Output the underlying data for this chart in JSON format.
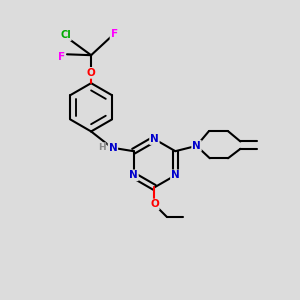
{
  "bg_color": "#dcdcdc",
  "bond_color": "#000000",
  "bond_width": 1.5,
  "atom_colors": {
    "N": "#0000cc",
    "O": "#ff0000",
    "F": "#ff00ff",
    "Cl": "#00aa00",
    "H": "#888888",
    "C": "#000000"
  }
}
